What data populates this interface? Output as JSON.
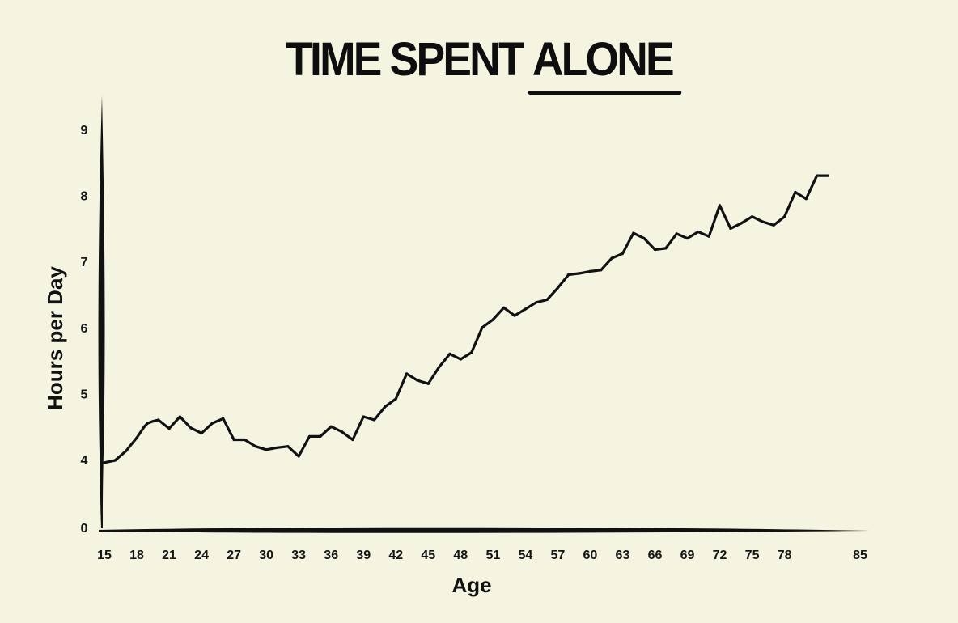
{
  "chart_data": {
    "type": "line",
    "title_parts": [
      "TIME SPENT ",
      "ALONE"
    ],
    "xlabel": "Age",
    "ylabel": "Hours per Day",
    "x_ticks": [
      15,
      18,
      21,
      24,
      27,
      30,
      33,
      36,
      39,
      42,
      45,
      48,
      51,
      54,
      57,
      60,
      63,
      66,
      69,
      72,
      75,
      78,
      85
    ],
    "y_ticks": [
      0,
      4,
      5,
      6,
      7,
      8,
      9
    ],
    "y_axis_note": "broken axis between 0 and 4",
    "xlim": [
      15,
      85
    ],
    "grid": false,
    "legend": "none",
    "line_color": "#111111",
    "series": [
      {
        "x": [
          15,
          16,
          17,
          18,
          18.7,
          19,
          19.5,
          20,
          21,
          22,
          23,
          24,
          25,
          26,
          27,
          28,
          29,
          30,
          31,
          32,
          33,
          34,
          35,
          36,
          37,
          38,
          39,
          40,
          41,
          42,
          43,
          44,
          45,
          46,
          47,
          48,
          49,
          50,
          51,
          52,
          53,
          54,
          55,
          56,
          57,
          58,
          59,
          60,
          61,
          62,
          63,
          64,
          65,
          66,
          67,
          68,
          69,
          70,
          71,
          72,
          73,
          74,
          75,
          76,
          77,
          78,
          79,
          80,
          81,
          82
        ],
        "y": [
          3.82,
          3.95,
          4.13,
          4.33,
          4.5,
          4.55,
          4.58,
          4.6,
          4.47,
          4.65,
          4.48,
          4.4,
          4.55,
          4.62,
          4.3,
          4.3,
          4.2,
          4.15,
          4.18,
          4.2,
          4.05,
          4.35,
          4.35,
          4.5,
          4.42,
          4.3,
          4.65,
          4.6,
          4.8,
          4.92,
          5.3,
          5.2,
          5.15,
          5.4,
          5.6,
          5.52,
          5.62,
          6.0,
          6.12,
          6.3,
          6.18,
          6.28,
          6.38,
          6.42,
          6.6,
          6.8,
          6.82,
          6.85,
          6.87,
          7.05,
          7.12,
          7.43,
          7.35,
          7.18,
          7.2,
          7.42,
          7.35,
          7.45,
          7.38,
          7.85,
          7.5,
          7.58,
          7.68,
          7.6,
          7.55,
          7.68,
          8.05,
          7.95,
          8.3,
          8.3
        ]
      }
    ]
  }
}
